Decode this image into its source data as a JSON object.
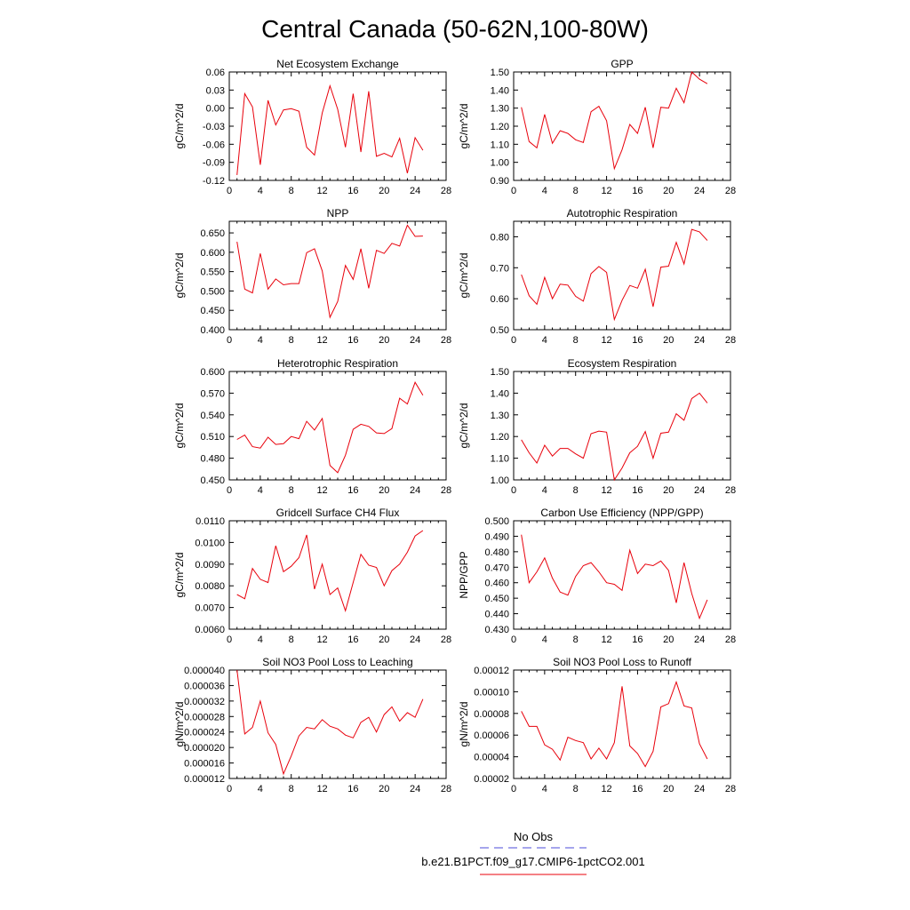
{
  "title": "Central Canada (50-62N,100-80W)",
  "legend": {
    "entries": [
      {
        "label": "No Obs",
        "color": "#4b4bd8",
        "dash": "dashed"
      },
      {
        "label": "b.e21.B1PCT.f09_g17.CMIP6-1pctCO2.001",
        "color": "#e8000b",
        "dash": "solid"
      }
    ]
  },
  "chart_data": [
    {
      "type": "line",
      "title": "Net Ecosystem Exchange",
      "ylabel": "gC/m^2/d",
      "xlim": [
        0,
        28
      ],
      "xticks": [
        "0",
        "4",
        "8",
        "12",
        "16",
        "20",
        "24",
        "28"
      ],
      "ylim": [
        -0.12,
        0.06
      ],
      "yticks": [
        "-0.12",
        "-0.09",
        "-0.06",
        "-0.03",
        "0.00",
        "0.03",
        "0.06"
      ],
      "x": [
        1,
        2,
        3,
        4,
        5,
        6,
        7,
        8,
        9,
        10,
        11,
        12,
        13,
        14,
        15,
        16,
        17,
        18,
        19,
        20,
        21,
        22,
        23,
        24,
        25
      ],
      "series": [
        {
          "color": "#e8000b",
          "values": [
            -0.111,
            0.024,
            0.002,
            -0.094,
            0.013,
            -0.028,
            -0.003,
            -0.001,
            -0.005,
            -0.065,
            -0.078,
            -0.008,
            0.037,
            -0.002,
            -0.065,
            0.024,
            -0.073,
            0.028,
            -0.08,
            -0.075,
            -0.081,
            -0.05,
            -0.108,
            -0.049,
            -0.07
          ]
        }
      ]
    },
    {
      "type": "line",
      "title": "GPP",
      "ylabel": "gC/m^2/d",
      "xlim": [
        0,
        28
      ],
      "xticks": [
        "0",
        "4",
        "8",
        "12",
        "16",
        "20",
        "24",
        "28"
      ],
      "ylim": [
        0.9,
        1.5
      ],
      "yticks": [
        "0.90",
        "1.00",
        "1.10",
        "1.20",
        "1.30",
        "1.40",
        "1.50"
      ],
      "x": [
        1,
        2,
        3,
        4,
        5,
        6,
        7,
        8,
        9,
        10,
        11,
        12,
        13,
        14,
        15,
        16,
        17,
        18,
        19,
        20,
        21,
        22,
        23,
        24,
        25
      ],
      "series": [
        {
          "color": "#e8000b",
          "values": [
            1.305,
            1.115,
            1.08,
            1.265,
            1.105,
            1.175,
            1.16,
            1.125,
            1.11,
            1.28,
            1.31,
            1.23,
            0.965,
            1.07,
            1.21,
            1.16,
            1.305,
            1.08,
            1.305,
            1.3,
            1.41,
            1.33,
            1.5,
            1.46,
            1.435
          ]
        }
      ]
    },
    {
      "type": "line",
      "title": "NPP",
      "ylabel": "gC/m^2/d",
      "xlim": [
        0,
        28
      ],
      "xticks": [
        "0",
        "4",
        "8",
        "12",
        "16",
        "20",
        "24",
        "28"
      ],
      "ylim": [
        0.4,
        0.68
      ],
      "yticks": [
        "0.400",
        "0.450",
        "0.500",
        "0.550",
        "0.600",
        "0.650"
      ],
      "x": [
        1,
        2,
        3,
        4,
        5,
        6,
        7,
        8,
        9,
        10,
        11,
        12,
        13,
        14,
        15,
        16,
        17,
        18,
        19,
        20,
        21,
        22,
        23,
        24,
        25
      ],
      "series": [
        {
          "color": "#e8000b",
          "values": [
            0.627,
            0.505,
            0.495,
            0.597,
            0.505,
            0.531,
            0.516,
            0.519,
            0.519,
            0.599,
            0.609,
            0.552,
            0.432,
            0.473,
            0.566,
            0.53,
            0.609,
            0.507,
            0.605,
            0.597,
            0.623,
            0.616,
            0.67,
            0.641,
            0.642
          ]
        }
      ]
    },
    {
      "type": "line",
      "title": "Autotrophic Respiration",
      "ylabel": "gC/m^2/d",
      "xlim": [
        0,
        28
      ],
      "xticks": [
        "0",
        "4",
        "8",
        "12",
        "16",
        "20",
        "24",
        "28"
      ],
      "ylim": [
        0.5,
        0.85
      ],
      "yticks": [
        "0.50",
        "0.60",
        "0.70",
        "0.80"
      ],
      "x": [
        1,
        2,
        3,
        4,
        5,
        6,
        7,
        8,
        9,
        10,
        11,
        12,
        13,
        14,
        15,
        16,
        17,
        18,
        19,
        20,
        21,
        22,
        23,
        24,
        25
      ],
      "series": [
        {
          "color": "#e8000b",
          "values": [
            0.678,
            0.61,
            0.582,
            0.669,
            0.6,
            0.647,
            0.644,
            0.608,
            0.592,
            0.681,
            0.704,
            0.685,
            0.533,
            0.595,
            0.643,
            0.634,
            0.695,
            0.574,
            0.702,
            0.705,
            0.782,
            0.712,
            0.824,
            0.816,
            0.788
          ]
        }
      ]
    },
    {
      "type": "line",
      "title": "Heterotrophic Respiration",
      "ylabel": "gC/m^2/d",
      "xlim": [
        0,
        28
      ],
      "xticks": [
        "0",
        "4",
        "8",
        "12",
        "16",
        "20",
        "24",
        "28"
      ],
      "ylim": [
        0.45,
        0.6
      ],
      "yticks": [
        "0.450",
        "0.480",
        "0.510",
        "0.540",
        "0.570",
        "0.600"
      ],
      "x": [
        1,
        2,
        3,
        4,
        5,
        6,
        7,
        8,
        9,
        10,
        11,
        12,
        13,
        14,
        15,
        16,
        17,
        18,
        19,
        20,
        21,
        22,
        23,
        24,
        25
      ],
      "series": [
        {
          "color": "#e8000b",
          "values": [
            0.506,
            0.512,
            0.496,
            0.494,
            0.509,
            0.499,
            0.5,
            0.51,
            0.507,
            0.531,
            0.519,
            0.535,
            0.47,
            0.46,
            0.484,
            0.52,
            0.527,
            0.524,
            0.515,
            0.514,
            0.521,
            0.563,
            0.555,
            0.585,
            0.567
          ]
        }
      ]
    },
    {
      "type": "line",
      "title": "Ecosystem Respiration",
      "ylabel": "gC/m^2/d",
      "xlim": [
        0,
        28
      ],
      "xticks": [
        "0",
        "4",
        "8",
        "12",
        "16",
        "20",
        "24",
        "28"
      ],
      "ylim": [
        1.0,
        1.5
      ],
      "yticks": [
        "1.00",
        "1.10",
        "1.20",
        "1.30",
        "1.40",
        "1.50"
      ],
      "x": [
        1,
        2,
        3,
        4,
        5,
        6,
        7,
        8,
        9,
        10,
        11,
        12,
        13,
        14,
        15,
        16,
        17,
        18,
        19,
        20,
        21,
        22,
        23,
        24,
        25
      ],
      "series": [
        {
          "color": "#e8000b",
          "values": [
            1.185,
            1.125,
            1.078,
            1.16,
            1.11,
            1.145,
            1.145,
            1.12,
            1.1,
            1.213,
            1.225,
            1.22,
            1.0,
            1.055,
            1.125,
            1.155,
            1.223,
            1.1,
            1.215,
            1.22,
            1.305,
            1.275,
            1.375,
            1.4,
            1.355
          ]
        }
      ]
    },
    {
      "type": "line",
      "title": "Gridcell Surface CH4 Flux",
      "ylabel": "gC/m^2/d",
      "xlim": [
        0,
        28
      ],
      "xticks": [
        "0",
        "4",
        "8",
        "12",
        "16",
        "20",
        "24",
        "28"
      ],
      "ylim": [
        0.006,
        0.011
      ],
      "yticks": [
        "0.0060",
        "0.0070",
        "0.0080",
        "0.0090",
        "0.0100",
        "0.0110"
      ],
      "x": [
        1,
        2,
        3,
        4,
        5,
        6,
        7,
        8,
        9,
        10,
        11,
        12,
        13,
        14,
        15,
        16,
        17,
        18,
        19,
        20,
        21,
        22,
        23,
        24,
        25
      ],
      "series": [
        {
          "color": "#e8000b",
          "values": [
            0.0076,
            0.0074,
            0.0088,
            0.0083,
            0.00815,
            0.00985,
            0.00865,
            0.0089,
            0.0093,
            0.01035,
            0.00785,
            0.009,
            0.0076,
            0.0079,
            0.00685,
            0.00815,
            0.00945,
            0.00895,
            0.00885,
            0.008,
            0.0087,
            0.009,
            0.00955,
            0.0103,
            0.01055
          ]
        }
      ]
    },
    {
      "type": "line",
      "title": "Carbon Use Efficiency (NPP/GPP)",
      "ylabel": "NPP/GPP",
      "xlim": [
        0,
        28
      ],
      "xticks": [
        "0",
        "4",
        "8",
        "12",
        "16",
        "20",
        "24",
        "28"
      ],
      "ylim": [
        0.43,
        0.5
      ],
      "yticks": [
        "0.430",
        "0.440",
        "0.450",
        "0.460",
        "0.470",
        "0.480",
        "0.490",
        "0.500"
      ],
      "x": [
        1,
        2,
        3,
        4,
        5,
        6,
        7,
        8,
        9,
        10,
        11,
        12,
        13,
        14,
        15,
        16,
        17,
        18,
        19,
        20,
        21,
        22,
        23,
        24,
        25
      ],
      "series": [
        {
          "color": "#e8000b",
          "values": [
            0.491,
            0.46,
            0.467,
            0.476,
            0.463,
            0.454,
            0.452,
            0.464,
            0.471,
            0.473,
            0.467,
            0.46,
            0.459,
            0.455,
            0.481,
            0.466,
            0.472,
            0.471,
            0.474,
            0.468,
            0.447,
            0.473,
            0.453,
            0.437,
            0.449
          ]
        }
      ]
    },
    {
      "type": "line",
      "title": "Soil NO3 Pool Loss to Leaching",
      "ylabel": "gN/m^2/d",
      "xlim": [
        0,
        28
      ],
      "xticks": [
        "0",
        "4",
        "8",
        "12",
        "16",
        "20",
        "24",
        "28"
      ],
      "ylim": [
        1.2e-05,
        4e-05
      ],
      "yticks": [
        "0.000012",
        "0.000016",
        "0.000020",
        "0.000024",
        "0.000028",
        "0.000032",
        "0.000036",
        "0.000040"
      ],
      "x": [
        1,
        2,
        3,
        4,
        5,
        6,
        7,
        8,
        9,
        10,
        11,
        12,
        13,
        14,
        15,
        16,
        17,
        18,
        19,
        20,
        21,
        22,
        23,
        24,
        25
      ],
      "series": [
        {
          "color": "#e8000b",
          "values": [
            4e-05,
            2.35e-05,
            2.52e-05,
            3.2e-05,
            2.38e-05,
            2.08e-05,
            1.32e-05,
            1.78e-05,
            2.3e-05,
            2.52e-05,
            2.48e-05,
            2.72e-05,
            2.55e-05,
            2.48e-05,
            2.32e-05,
            2.25e-05,
            2.65e-05,
            2.78e-05,
            2.4e-05,
            2.85e-05,
            3.05e-05,
            2.68e-05,
            2.9e-05,
            2.78e-05,
            3.25e-05
          ]
        }
      ]
    },
    {
      "type": "line",
      "title": "Soil NO3 Pool Loss to Runoff",
      "ylabel": "gN/m^2/d",
      "xlim": [
        0,
        28
      ],
      "xticks": [
        "0",
        "4",
        "8",
        "12",
        "16",
        "20",
        "24",
        "28"
      ],
      "ylim": [
        2e-05,
        0.00012
      ],
      "yticks": [
        "0.00002",
        "0.00004",
        "0.00006",
        "0.00008",
        "0.00010",
        "0.00012"
      ],
      "x": [
        1,
        2,
        3,
        4,
        5,
        6,
        7,
        8,
        9,
        10,
        11,
        12,
        13,
        14,
        15,
        16,
        17,
        18,
        19,
        20,
        21,
        22,
        23,
        24,
        25
      ],
      "series": [
        {
          "color": "#e8000b",
          "values": [
            8.2e-05,
            6.8e-05,
            6.8e-05,
            5.1e-05,
            4.7e-05,
            3.7e-05,
            5.8e-05,
            5.5e-05,
            5.3e-05,
            3.8e-05,
            4.8e-05,
            3.8e-05,
            5.3e-05,
            0.000105,
            5e-05,
            4.3e-05,
            3.1e-05,
            4.5e-05,
            8.6e-05,
            8.9e-05,
            0.000109,
            8.7e-05,
            8.5e-05,
            5.2e-05,
            3.8e-05
          ]
        }
      ]
    }
  ]
}
